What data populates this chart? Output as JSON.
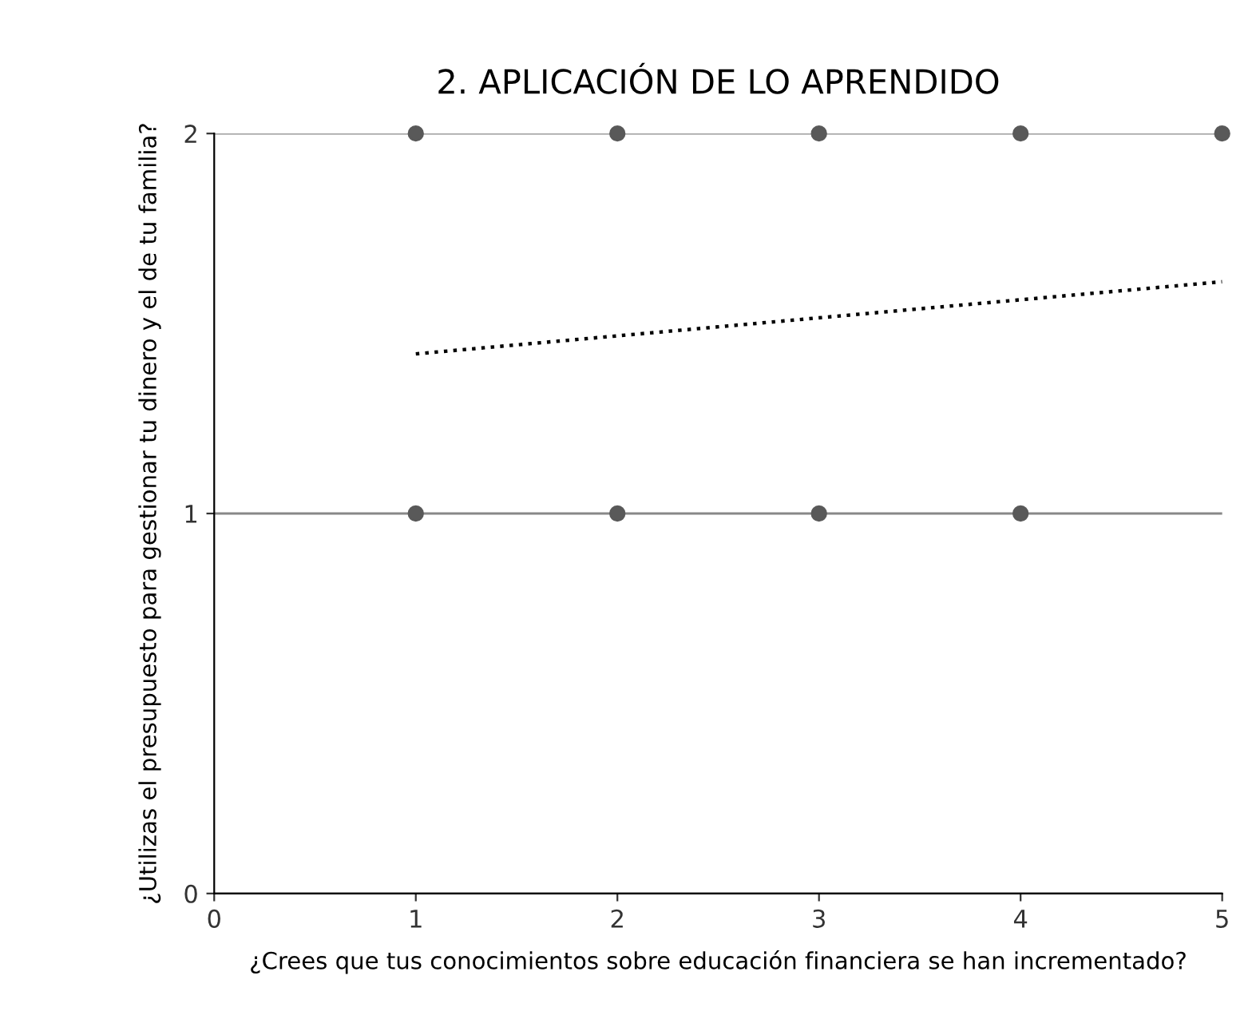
{
  "chart_data": {
    "type": "scatter",
    "title": "2. APLICACIÓN DE LO APRENDIDO",
    "xlabel": "¿Crees que tus conocimientos sobre educación financiera se han incrementado?",
    "ylabel": "¿Utilizas el presupuesto para gestionar tu dinero y el de tu familia?",
    "series": [
      {
        "color": "#595959",
        "marker": "circle",
        "x": [
          1,
          2,
          3,
          4,
          5,
          1,
          2,
          3,
          4
        ],
        "values": [
          2,
          2,
          2,
          2,
          2,
          1,
          1,
          1,
          1
        ]
      },
      {
        "type": "line",
        "color": "#000000",
        "line_style": "dotted",
        "marker": "none",
        "x": [
          1,
          5
        ],
        "values": [
          1.42,
          1.61
        ]
      }
    ],
    "xlim": [
      0,
      5
    ],
    "ylim": [
      0,
      2
    ],
    "xticks": [
      0,
      1,
      2,
      3,
      4,
      5
    ],
    "yticks": [
      0,
      1,
      2
    ],
    "grid": "y",
    "legend": false
  }
}
